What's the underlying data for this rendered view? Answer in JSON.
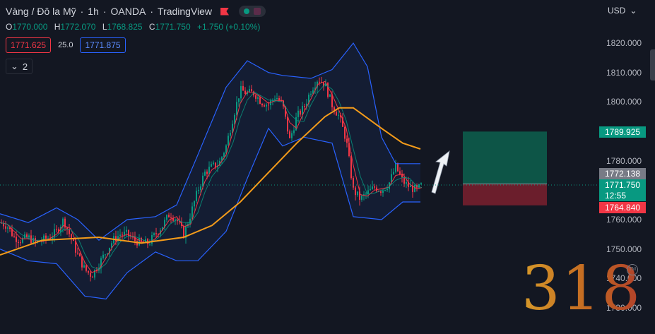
{
  "header": {
    "symbol": "Vàng / Đô la Mỹ",
    "interval": "1h",
    "broker": "OANDA",
    "platform": "TradingView",
    "sep": "·"
  },
  "ohlc": {
    "o_label": "O",
    "o_value": "1770.000",
    "h_label": "H",
    "h_value": "1772.070",
    "l_label": "L",
    "l_value": "1768.825",
    "c_label": "C",
    "c_value": "1771.750",
    "change": "+1.750 (+0.10%)"
  },
  "trade": {
    "sell_price": "1771.625",
    "spread": "25.0",
    "buy_price": "1771.875"
  },
  "indicators": {
    "count": "2"
  },
  "currency": {
    "label": "USD"
  },
  "price_axis": {
    "ticks": [
      "1820.000",
      "1810.000",
      "1800.000",
      "1790.000",
      "1780.000",
      "1770.000",
      "1760.000",
      "1750.000",
      "1740.000",
      "1730.000"
    ],
    "target_tag": "1789.925",
    "level_tag": "1772.138",
    "last_price": "1771.750",
    "countdown": "12:55",
    "stop_tag": "1764.840"
  },
  "watermark": "318",
  "trademark": "TM",
  "colors": {
    "background": "#131722",
    "up": "#089981",
    "down": "#f23645",
    "bollinger": "#2962ff",
    "ma_slow": "#f59c1a",
    "ma_fast": "#f23645",
    "ma_green": "#089981",
    "profit_zone": "#0d5547",
    "loss_zone": "#6b1e2c"
  },
  "chart_data": {
    "type": "candlestick",
    "title": "Vàng / Đô la Mỹ · 1h · OANDA",
    "ylim": [
      1727,
      1825
    ],
    "y_ticks": [
      1730,
      1740,
      1750,
      1760,
      1770,
      1780,
      1790,
      1800,
      1810,
      1820
    ],
    "close_path": [
      [
        0,
        1759
      ],
      [
        10,
        1758
      ],
      [
        20,
        1754
      ],
      [
        30,
        1753
      ],
      [
        40,
        1754
      ],
      [
        50,
        1752
      ],
      [
        60,
        1753
      ],
      [
        70,
        1754
      ],
      [
        80,
        1756
      ],
      [
        90,
        1760
      ],
      [
        100,
        1754
      ],
      [
        110,
        1748
      ],
      [
        120,
        1743
      ],
      [
        130,
        1741
      ],
      [
        140,
        1745
      ],
      [
        150,
        1749
      ],
      [
        160,
        1753
      ],
      [
        170,
        1755
      ],
      [
        180,
        1755
      ],
      [
        190,
        1753
      ],
      [
        200,
        1752
      ],
      [
        210,
        1752
      ],
      [
        220,
        1755
      ],
      [
        230,
        1758
      ],
      [
        240,
        1762
      ],
      [
        250,
        1760
      ],
      [
        260,
        1755
      ],
      [
        270,
        1762
      ],
      [
        280,
        1770
      ],
      [
        290,
        1776
      ],
      [
        300,
        1778
      ],
      [
        310,
        1779
      ],
      [
        320,
        1785
      ],
      [
        330,
        1795
      ],
      [
        340,
        1804
      ],
      [
        350,
        1803
      ],
      [
        360,
        1803
      ],
      [
        370,
        1800
      ],
      [
        380,
        1799
      ],
      [
        390,
        1802
      ],
      [
        400,
        1799
      ],
      [
        410,
        1787
      ],
      [
        420,
        1795
      ],
      [
        430,
        1798
      ],
      [
        440,
        1804
      ],
      [
        450,
        1808
      ],
      [
        460,
        1806
      ],
      [
        470,
        1799
      ],
      [
        480,
        1795
      ],
      [
        490,
        1787
      ],
      [
        500,
        1770
      ],
      [
        510,
        1767
      ],
      [
        520,
        1769
      ],
      [
        530,
        1771
      ],
      [
        540,
        1770
      ],
      [
        550,
        1772
      ],
      [
        560,
        1778
      ],
      [
        570,
        1773
      ],
      [
        580,
        1771
      ],
      [
        590,
        1770
      ],
      [
        597,
        1771.75
      ]
    ],
    "bollinger_upper": [
      [
        0,
        1762
      ],
      [
        40,
        1759
      ],
      [
        80,
        1764
      ],
      [
        110,
        1760
      ],
      [
        140,
        1753
      ],
      [
        180,
        1760
      ],
      [
        220,
        1761
      ],
      [
        250,
        1765
      ],
      [
        280,
        1782
      ],
      [
        320,
        1805
      ],
      [
        350,
        1814
      ],
      [
        380,
        1810
      ],
      [
        400,
        1809
      ],
      [
        440,
        1808
      ],
      [
        470,
        1811
      ],
      [
        500,
        1820
      ],
      [
        520,
        1812
      ],
      [
        540,
        1788
      ],
      [
        560,
        1779
      ],
      [
        595,
        1779
      ]
    ],
    "bollinger_lower": [
      [
        0,
        1750
      ],
      [
        40,
        1746
      ],
      [
        80,
        1745
      ],
      [
        120,
        1734
      ],
      [
        150,
        1733
      ],
      [
        180,
        1742
      ],
      [
        220,
        1749
      ],
      [
        250,
        1746
      ],
      [
        280,
        1746
      ],
      [
        320,
        1756
      ],
      [
        350,
        1774
      ],
      [
        380,
        1791
      ],
      [
        400,
        1785
      ],
      [
        430,
        1788
      ],
      [
        470,
        1786
      ],
      [
        500,
        1761
      ],
      [
        540,
        1760
      ],
      [
        570,
        1766
      ],
      [
        595,
        1766
      ]
    ],
    "ma_slow": [
      [
        0,
        1748
      ],
      [
        60,
        1753
      ],
      [
        140,
        1754
      ],
      [
        200,
        1752
      ],
      [
        260,
        1754
      ],
      [
        300,
        1758
      ],
      [
        340,
        1766
      ],
      [
        380,
        1776
      ],
      [
        420,
        1786
      ],
      [
        460,
        1795
      ],
      [
        480,
        1798
      ],
      [
        500,
        1798
      ],
      [
        540,
        1791
      ],
      [
        570,
        1786
      ],
      [
        595,
        1784
      ]
    ],
    "position": {
      "target": 1789.925,
      "entry": 1772.138,
      "last": 1771.75,
      "stop": 1764.84
    }
  }
}
